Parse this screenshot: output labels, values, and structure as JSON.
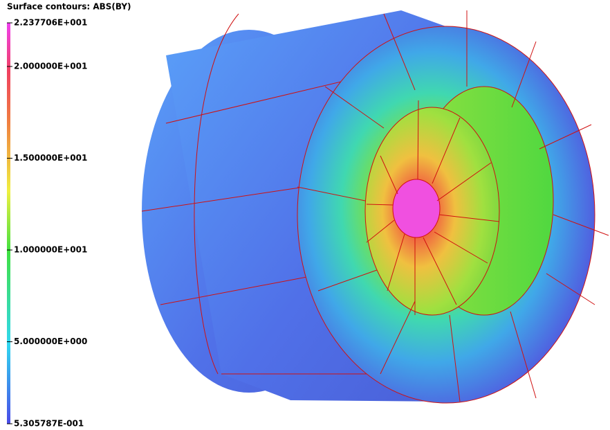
{
  "legend": {
    "title": "Surface contours: ABS(BY)",
    "ticks": [
      {
        "value": 22.37706,
        "label": "2.237706E+001"
      },
      {
        "value": 20,
        "label": "2.000000E+001"
      },
      {
        "value": 15,
        "label": "1.500000E+001"
      },
      {
        "value": 10,
        "label": "1.000000E+001"
      },
      {
        "value": 5,
        "label": "5.000000E+000"
      },
      {
        "value": 0.5305787,
        "label": "5.305787E-001"
      }
    ]
  }
}
